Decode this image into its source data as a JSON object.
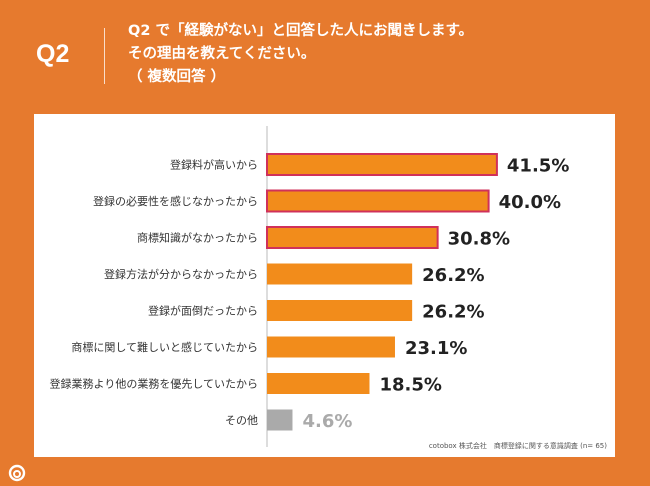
{
  "header": {
    "q_number": "Q2",
    "question_lines": [
      "Q2 で「経験がない」と回答した人にお聞きします。",
      "その理由を教えてください。",
      "（ 複数回答 ）"
    ]
  },
  "colors": {
    "background": "#E67A2E",
    "bar": "#F28C1B",
    "bar_highlight_border": "#D0315A",
    "bar_other": "#AAAAAA",
    "value_text": "#222222",
    "value_text_other": "#AAAAAA"
  },
  "chart_data": {
    "type": "bar",
    "orientation": "horizontal",
    "categories": [
      "登録料が高いから",
      "登録の必要性を感じなかったから",
      "商標知識がなかったから",
      "登録方法が分からなかったから",
      "登録が面倒だったから",
      "商標に関して難しいと感じていたから",
      "登録業務より他の業務を優先していたから",
      "その他"
    ],
    "values": [
      41.5,
      40.0,
      30.8,
      26.2,
      26.2,
      23.1,
      18.5,
      4.6
    ],
    "value_labels": [
      "41.5%",
      "40.0%",
      "30.8%",
      "26.2%",
      "26.2%",
      "23.1%",
      "18.5%",
      "4.6%"
    ],
    "highlighted": [
      true,
      true,
      true,
      false,
      false,
      false,
      false,
      false
    ],
    "xlim": [
      0,
      100
    ],
    "grid": false,
    "legend": "none"
  },
  "footer": {
    "source": "cotobox 株式会社　商標登録に関する意識調査 (n= 65)"
  }
}
